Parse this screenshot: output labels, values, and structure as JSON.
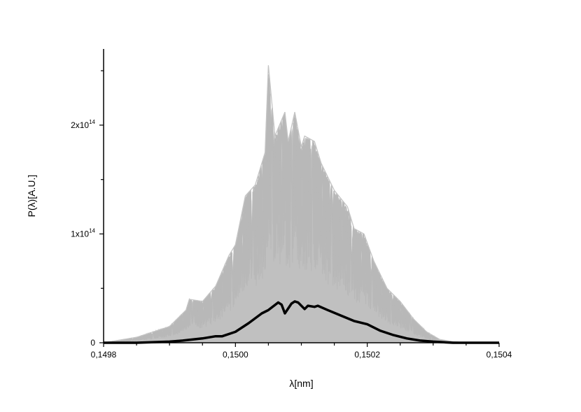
{
  "chart_data": {
    "type": "line",
    "xlabel": "λ[nm]",
    "ylabel": "P(λ)[A.U.]",
    "xlim": [
      0.1498,
      0.1504
    ],
    "ylim": [
      0,
      270000000000000.0
    ],
    "x_ticks": [
      {
        "value": 0.1498,
        "label": "0,1498"
      },
      {
        "value": 0.15,
        "label": "0,1500"
      },
      {
        "value": 0.1502,
        "label": "0,1502"
      },
      {
        "value": 0.1504,
        "label": "0,1504"
      }
    ],
    "y_ticks": [
      {
        "value": 0,
        "mantissa": "0",
        "exponent": ""
      },
      {
        "value": 100000000000000.0,
        "mantissa": "1x10",
        "exponent": "14"
      },
      {
        "value": 200000000000000.0,
        "mantissa": "2x10",
        "exponent": "14"
      }
    ],
    "legend": "none",
    "grid": false,
    "series": [
      {
        "role": "individual-spectra-envelope",
        "color": "#c0c0c0",
        "x": [
          0.1498,
          0.14985,
          0.1499,
          0.149925,
          0.14993,
          0.14995,
          0.14997,
          0.14999,
          0.15,
          0.150015,
          0.15003,
          0.150045,
          0.15005,
          0.15006,
          0.150075,
          0.15008,
          0.15009,
          0.1501,
          0.150105,
          0.15012,
          0.15013,
          0.15015,
          0.15017,
          0.15018,
          0.150195,
          0.15021,
          0.15023,
          0.15025,
          0.15027,
          0.15029,
          0.15031,
          0.15033,
          0.15035
        ],
        "values": [
          0.0,
          5000000000000.0,
          15000000000000.0,
          30000000000000.0,
          40000000000000.0,
          38000000000000.0,
          52000000000000.0,
          80000000000000.0,
          90000000000000.0,
          135000000000000.0,
          145000000000000.0,
          175000000000000.0,
          255000000000000.0,
          190000000000000.0,
          212000000000000.0,
          185000000000000.0,
          212000000000000.0,
          180000000000000.0,
          190000000000000.0,
          185000000000000.0,
          165000000000000.0,
          140000000000000.0,
          125000000000000.0,
          105000000000000.0,
          100000000000000.0,
          75000000000000.0,
          50000000000000.0,
          38000000000000.0,
          22000000000000.0,
          10000000000000.0,
          3000000000000.0,
          1000000000000.0,
          0.0
        ]
      },
      {
        "role": "average-spectrum",
        "color": "#000000",
        "x": [
          0.1498,
          0.14985,
          0.1499,
          0.14992,
          0.14995,
          0.14997,
          0.14998,
          0.15,
          0.15002,
          0.15004,
          0.15005,
          0.150065,
          0.15007,
          0.150075,
          0.150085,
          0.15009,
          0.150095,
          0.150105,
          0.15011,
          0.15012,
          0.150125,
          0.15014,
          0.15016,
          0.15018,
          0.1502,
          0.15022,
          0.15024,
          0.15026,
          0.15028,
          0.1503,
          0.15033,
          0.15036,
          0.1504
        ],
        "values": [
          0.0,
          0.0,
          1000000000000.0,
          2000000000000.0,
          4000000000000.0,
          6000000000000.0,
          6000000000000.0,
          10000000000000.0,
          18000000000000.0,
          27000000000000.0,
          30000000000000.0,
          37000000000000.0,
          35000000000000.0,
          27000000000000.0,
          36000000000000.0,
          38000000000000.0,
          37000000000000.0,
          31000000000000.0,
          34000000000000.0,
          33000000000000.0,
          34000000000000.0,
          30000000000000.0,
          25000000000000.0,
          20000000000000.0,
          17000000000000.0,
          11000000000000.0,
          7000000000000.0,
          4000000000000.0,
          2000000000000.0,
          1000000000000.0,
          0.0,
          0.0,
          0.0
        ]
      }
    ]
  }
}
